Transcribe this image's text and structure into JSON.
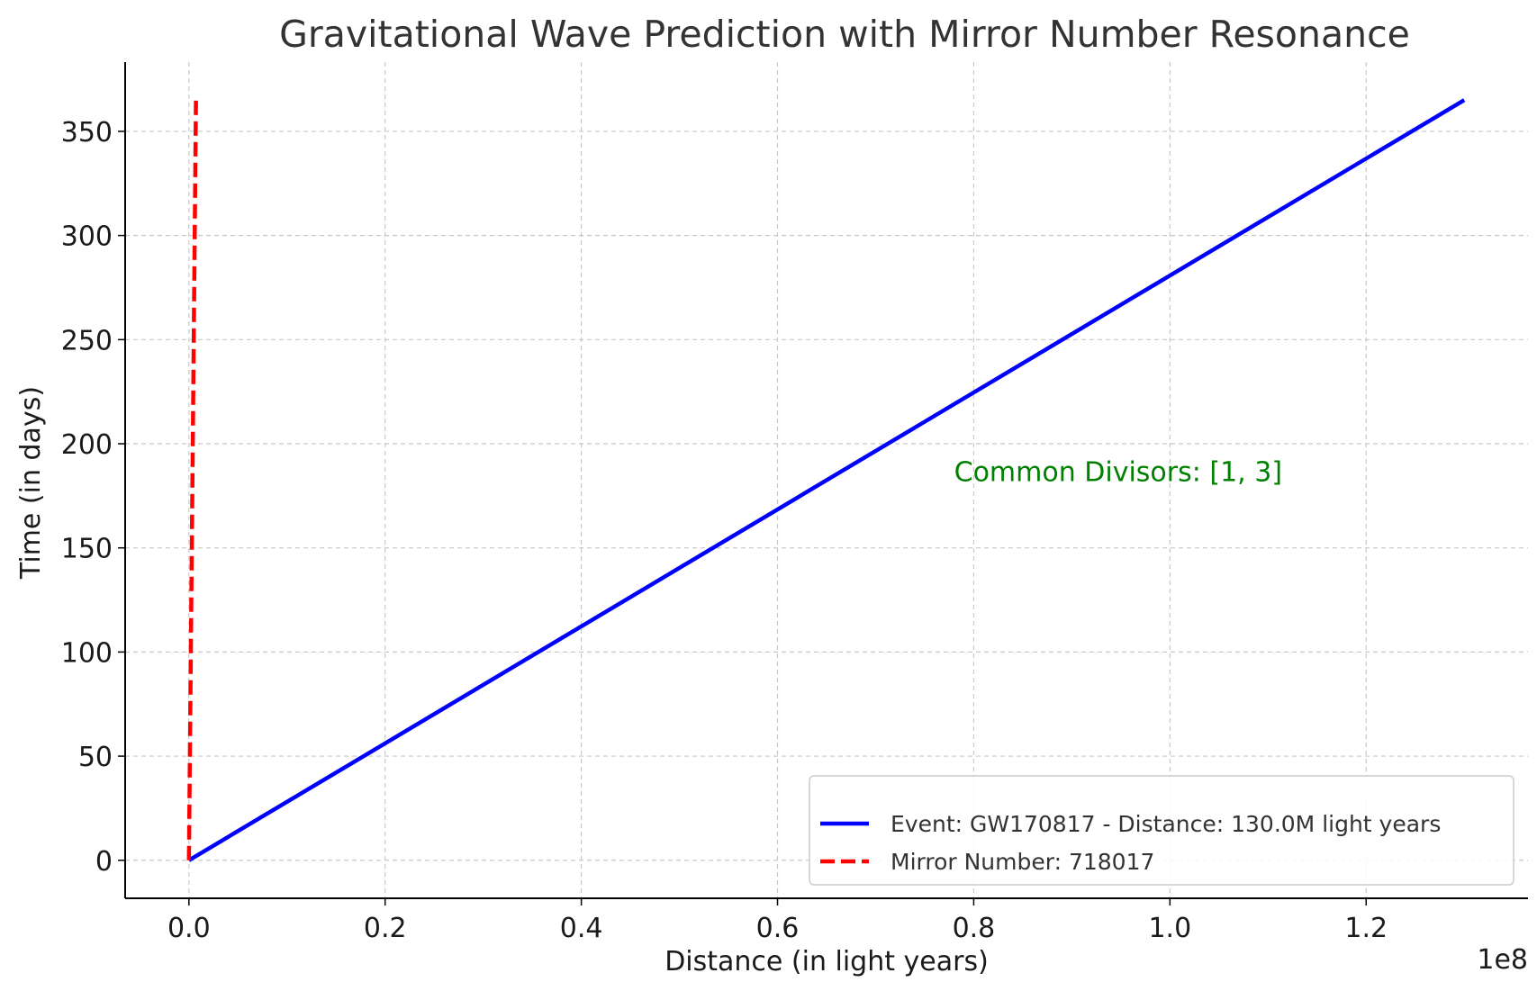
{
  "chart_data": {
    "type": "line",
    "title": "Gravitational Wave Prediction with Mirror Number Resonance",
    "xlabel": "Distance (in light years)",
    "ylabel": "Time (in days)",
    "x_offset_label": "1e8",
    "xlim": [
      -6500000,
      136500000
    ],
    "ylim": [
      -18.25,
      383.25
    ],
    "x_ticks": [
      0,
      20000000,
      40000000,
      60000000,
      80000000,
      100000000,
      120000000
    ],
    "x_tick_labels": [
      "0.0",
      "0.2",
      "0.4",
      "0.6",
      "0.8",
      "1.0",
      "1.2"
    ],
    "y_ticks": [
      0,
      50,
      100,
      150,
      200,
      250,
      300,
      350
    ],
    "y_tick_labels": [
      "0",
      "50",
      "100",
      "150",
      "200",
      "250",
      "300",
      "350"
    ],
    "grid": true,
    "legend_position": "lower-right",
    "series": [
      {
        "name": "Event: GW170817 - Distance: 130.0M light years",
        "color": "#0000ff",
        "style": "solid",
        "x": [
          0,
          130000000
        ],
        "y": [
          0,
          365
        ]
      },
      {
        "name": "Mirror Number: 718017",
        "color": "#ff0000",
        "style": "dashed",
        "x": [
          0,
          718017
        ],
        "y": [
          0,
          365
        ]
      }
    ],
    "annotations": [
      {
        "text": "Common Divisors: [1, 3]",
        "x": 78000000,
        "y": 182,
        "color": "#008000"
      }
    ]
  }
}
